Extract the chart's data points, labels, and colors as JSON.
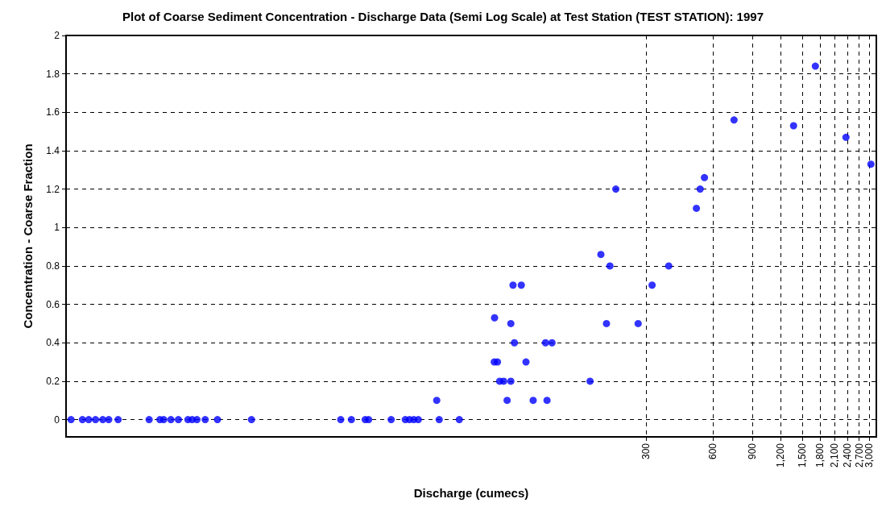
{
  "chart_data": {
    "type": "scatter",
    "title": "Plot of Coarse Sediment Concentration - Discharge Data (Semi Log Scale) at Test Station (TEST STATION): 1997",
    "xlabel": "Discharge (cumecs)",
    "ylabel": "Concentration - Coarse Fraction",
    "x": [
      0.8,
      0.9,
      0.96,
      1.03,
      1.11,
      1.18,
      1.3,
      1.79,
      2.0,
      2.08,
      2.24,
      2.42,
      2.67,
      2.79,
      2.93,
      3.19,
      3.62,
      5.14,
      12.9,
      14.4,
      16.6,
      17.2,
      21.7,
      25.1,
      26.2,
      27.4,
      28.7,
      35.6,
      43.8,
      34.7,
      62.8,
      64.9,
      87.1,
      66.4,
      69.2,
      74.5,
      168.6,
      71.7,
      93.8,
      108.2,
      77.3,
      106.5,
      113.9,
      74.5,
      199.7,
      276.8,
      63.0,
      76.2,
      83.0,
      319.6,
      206.9,
      379.4,
      188.5,
      219.9,
      524.5,
      504.6,
      548.2,
      743.7,
      1374,
      1720,
      2358,
      3050
    ],
    "values": [
      0,
      0,
      0,
      0,
      0,
      0,
      0,
      0,
      0,
      0,
      0,
      0,
      0,
      0,
      0,
      0,
      0,
      0,
      0,
      0,
      0,
      0,
      0,
      0,
      0,
      0,
      0,
      0,
      0,
      0.1,
      0.3,
      0.3,
      0.3,
      0.2,
      0.2,
      0.2,
      0.2,
      0.1,
      0.1,
      0.1,
      0.4,
      0.4,
      0.4,
      0.5,
      0.5,
      0.5,
      0.53,
      0.7,
      0.7,
      0.7,
      0.8,
      0.8,
      0.86,
      1.2,
      1.2,
      1.1,
      1.26,
      1.56,
      1.53,
      1.84,
      1.47,
      1.33
    ],
    "color": "#0000ff",
    "marker": "circle",
    "log": "x",
    "grid": true,
    "xlim": [
      0.76,
      3225
    ],
    "ylim": [
      -0.09,
      2
    ],
    "xticks": [
      300,
      600,
      900,
      {
        "value": 1200,
        "label": "1,200"
      },
      {
        "value": 1500,
        "label": "1,500"
      },
      {
        "value": 1800,
        "label": "1,800"
      },
      {
        "value": 2100,
        "label": "2,100"
      },
      {
        "value": 2400,
        "label": "2,400"
      },
      {
        "value": 2700,
        "label": "2,700"
      },
      {
        "value": 3000,
        "label": "3,000"
      }
    ],
    "yticks": [
      0,
      0.2,
      0.4,
      0.6,
      0.8,
      1,
      1.2,
      1.4,
      1.6,
      1.8,
      2
    ]
  }
}
